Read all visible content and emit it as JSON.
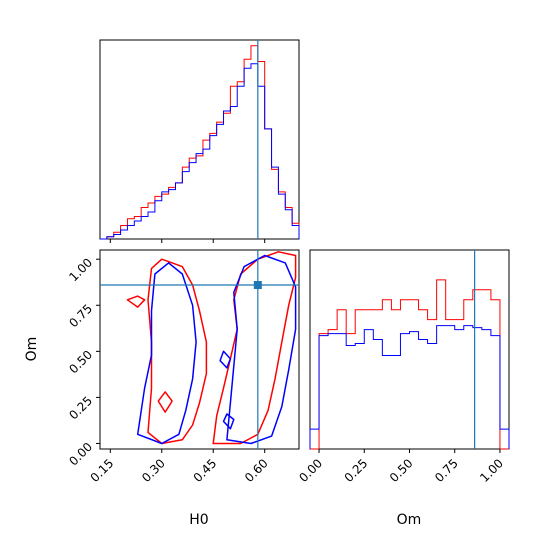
{
  "chart_data": {
    "type": "corner",
    "parameters": [
      "H0",
      "Om"
    ],
    "truth": {
      "H0": 0.58,
      "Om": 0.86
    },
    "colors": {
      "red_series": "#ff0000",
      "blue_series": "#0000ff",
      "truth": "#1f77b4"
    },
    "axes": {
      "H0": {
        "range": [
          0.12,
          0.7
        ],
        "ticks": [
          "0.15",
          "0.30",
          "0.45",
          "0.60"
        ],
        "tick_values": [
          0.15,
          0.3,
          0.45,
          0.6
        ],
        "label": "H0"
      },
      "Om": {
        "range": [
          -0.03,
          1.05
        ],
        "ticks": [
          "0.00",
          "0.25",
          "0.50",
          "0.75",
          "1.00"
        ],
        "tick_values": [
          0.0,
          0.25,
          0.5,
          0.75,
          1.0
        ],
        "label": "Om"
      }
    },
    "hist_H0": {
      "bin_edges": [
        0.12,
        0.14,
        0.16,
        0.18,
        0.2,
        0.22,
        0.24,
        0.26,
        0.28,
        0.3,
        0.32,
        0.34,
        0.36,
        0.38,
        0.4,
        0.42,
        0.44,
        0.46,
        0.48,
        0.5,
        0.52,
        0.54,
        0.56,
        0.58,
        0.6,
        0.62,
        0.64,
        0.66,
        0.68,
        0.7
      ],
      "red": [
        0.0,
        0.01,
        0.03,
        0.06,
        0.09,
        0.1,
        0.14,
        0.16,
        0.19,
        0.2,
        0.23,
        0.25,
        0.32,
        0.36,
        0.37,
        0.44,
        0.47,
        0.52,
        0.56,
        0.68,
        0.7,
        0.8,
        0.86,
        0.79,
        0.49,
        0.31,
        0.21,
        0.14,
        0.07
      ],
      "blue": [
        0.0,
        0.01,
        0.02,
        0.04,
        0.06,
        0.08,
        0.1,
        0.12,
        0.17,
        0.21,
        0.22,
        0.25,
        0.3,
        0.34,
        0.38,
        0.4,
        0.46,
        0.51,
        0.57,
        0.59,
        0.68,
        0.76,
        0.78,
        0.68,
        0.49,
        0.32,
        0.2,
        0.13,
        0.06
      ]
    },
    "hist_Om": {
      "bin_edges": [
        -0.05,
        0.0,
        0.05,
        0.1,
        0.15,
        0.2,
        0.25,
        0.3,
        0.35,
        0.4,
        0.45,
        0.5,
        0.55,
        0.6,
        0.65,
        0.7,
        0.75,
        0.8,
        0.85,
        0.9,
        0.95,
        1.0,
        1.05
      ],
      "red": [
        0.0,
        0.58,
        0.6,
        0.7,
        0.58,
        0.7,
        0.7,
        0.7,
        0.75,
        0.7,
        0.75,
        0.75,
        0.7,
        0.65,
        0.85,
        0.65,
        0.65,
        0.75,
        0.8,
        0.8,
        0.75,
        0.0
      ],
      "blue": [
        0.1,
        0.57,
        0.58,
        0.58,
        0.52,
        0.53,
        0.6,
        0.55,
        0.47,
        0.47,
        0.58,
        0.59,
        0.55,
        0.53,
        0.62,
        0.62,
        0.6,
        0.62,
        0.61,
        0.6,
        0.57,
        0.1
      ]
    },
    "contours": {
      "red": [
        [
          [
            0.26,
            0.06
          ],
          [
            0.3,
            0.0
          ],
          [
            0.36,
            0.02
          ],
          [
            0.39,
            0.1
          ],
          [
            0.41,
            0.22
          ],
          [
            0.43,
            0.38
          ],
          [
            0.43,
            0.55
          ],
          [
            0.41,
            0.72
          ],
          [
            0.39,
            0.86
          ],
          [
            0.36,
            0.96
          ],
          [
            0.3,
            1.0
          ],
          [
            0.27,
            0.95
          ],
          [
            0.26,
            0.78
          ],
          [
            0.27,
            0.55
          ],
          [
            0.27,
            0.3
          ],
          [
            0.26,
            0.06
          ]
        ],
        [
          [
            0.45,
            0.0
          ],
          [
            0.53,
            0.0
          ],
          [
            0.58,
            0.05
          ],
          [
            0.61,
            0.18
          ],
          [
            0.63,
            0.35
          ],
          [
            0.65,
            0.55
          ],
          [
            0.67,
            0.75
          ],
          [
            0.69,
            0.9
          ],
          [
            0.69,
            1.02
          ],
          [
            0.64,
            1.04
          ],
          [
            0.58,
            1.0
          ],
          [
            0.53,
            0.92
          ],
          [
            0.51,
            0.78
          ],
          [
            0.52,
            0.62
          ],
          [
            0.5,
            0.46
          ],
          [
            0.48,
            0.3
          ],
          [
            0.46,
            0.15
          ],
          [
            0.45,
            0.0
          ]
        ],
        [
          [
            0.2,
            0.78
          ],
          [
            0.23,
            0.74
          ],
          [
            0.25,
            0.78
          ],
          [
            0.23,
            0.8
          ],
          [
            0.2,
            0.78
          ]
        ],
        [
          [
            0.29,
            0.23
          ],
          [
            0.31,
            0.17
          ],
          [
            0.33,
            0.23
          ],
          [
            0.31,
            0.28
          ],
          [
            0.29,
            0.23
          ]
        ]
      ],
      "blue": [
        [
          [
            0.23,
            0.05
          ],
          [
            0.3,
            0.0
          ],
          [
            0.35,
            0.05
          ],
          [
            0.37,
            0.18
          ],
          [
            0.39,
            0.35
          ],
          [
            0.4,
            0.55
          ],
          [
            0.39,
            0.75
          ],
          [
            0.36,
            0.92
          ],
          [
            0.32,
            0.98
          ],
          [
            0.28,
            0.92
          ],
          [
            0.27,
            0.72
          ],
          [
            0.27,
            0.48
          ],
          [
            0.25,
            0.3
          ],
          [
            0.23,
            0.05
          ]
        ],
        [
          [
            0.49,
            0.02
          ],
          [
            0.56,
            0.0
          ],
          [
            0.62,
            0.04
          ],
          [
            0.65,
            0.2
          ],
          [
            0.67,
            0.4
          ],
          [
            0.69,
            0.62
          ],
          [
            0.69,
            0.85
          ],
          [
            0.66,
            0.98
          ],
          [
            0.6,
            1.02
          ],
          [
            0.54,
            0.96
          ],
          [
            0.51,
            0.82
          ],
          [
            0.52,
            0.62
          ],
          [
            0.51,
            0.42
          ],
          [
            0.5,
            0.22
          ],
          [
            0.49,
            0.02
          ]
        ],
        [
          [
            0.47,
            0.45
          ],
          [
            0.49,
            0.41
          ],
          [
            0.5,
            0.46
          ],
          [
            0.48,
            0.5
          ],
          [
            0.47,
            0.45
          ]
        ],
        [
          [
            0.48,
            0.12
          ],
          [
            0.5,
            0.08
          ],
          [
            0.51,
            0.13
          ],
          [
            0.49,
            0.16
          ],
          [
            0.48,
            0.12
          ]
        ]
      ]
    }
  }
}
